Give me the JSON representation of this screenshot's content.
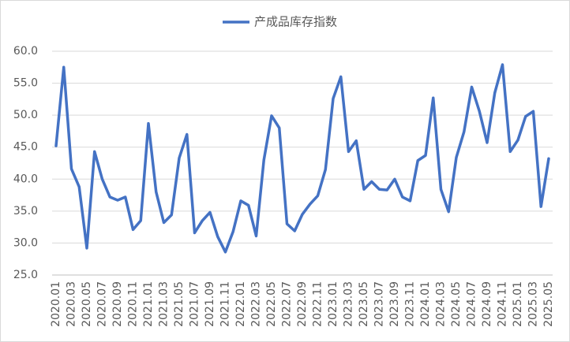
{
  "chart_data": {
    "type": "line",
    "categories": [
      "2020.01",
      null,
      "2020.03",
      null,
      "2020.05",
      null,
      "2020.07",
      null,
      "2020.09",
      null,
      "2020.11",
      null,
      "2021.01",
      null,
      "2021.03",
      null,
      "2021.05",
      null,
      "2021.07",
      null,
      "2021.09",
      null,
      "2021.11",
      null,
      "2022.01",
      null,
      "2022.03",
      null,
      "2022.05",
      null,
      "2022.07",
      null,
      "2022.09",
      null,
      "2022.11",
      null,
      "2023.01",
      null,
      "2023.03",
      null,
      "2023.05",
      null,
      "2023.07",
      null,
      "2023.09",
      null,
      "2023.11",
      null,
      "2024.01",
      null,
      "2024.03",
      null,
      "2024.05",
      null,
      "2024.07",
      null,
      "2024.09",
      null,
      "2024.11",
      null,
      "2025.01",
      null,
      "2025.03",
      null,
      "2025.05"
    ],
    "series": [
      {
        "name": "产成品库存指数",
        "color": "#4472c4",
        "values": [
          45.2,
          57.5,
          41.6,
          38.8,
          29.2,
          44.3,
          40.0,
          37.2,
          36.7,
          37.2,
          32.1,
          33.5,
          48.7,
          38.0,
          33.2,
          34.4,
          43.3,
          47.0,
          31.6,
          33.5,
          34.8,
          31.0,
          28.6,
          31.8,
          36.6,
          35.9,
          31.1,
          43.0,
          49.9,
          48.0,
          33.0,
          31.9,
          34.5,
          36.1,
          37.4,
          41.5,
          52.6,
          56.0,
          44.3,
          46.0,
          38.4,
          39.6,
          38.4,
          38.3,
          40.0,
          37.2,
          36.6,
          42.9,
          43.7,
          52.7,
          38.4,
          34.9,
          43.4,
          47.4,
          54.4,
          50.6,
          45.7,
          53.5,
          57.9,
          44.3,
          46.1,
          49.8,
          50.6,
          35.7,
          43.2
        ]
      }
    ],
    "ylim": [
      25,
      60
    ],
    "yticks": [
      {
        "value": 25,
        "label": "25.0"
      },
      {
        "value": 30,
        "label": "30.0"
      },
      {
        "value": 35,
        "label": "35.0"
      },
      {
        "value": 40,
        "label": "40.0"
      },
      {
        "value": 45,
        "label": "45.0"
      },
      {
        "value": 50,
        "label": "50.0"
      },
      {
        "value": 55,
        "label": "55.0"
      },
      {
        "value": 60,
        "label": "60.0"
      }
    ],
    "grid": true,
    "legend": "top"
  }
}
